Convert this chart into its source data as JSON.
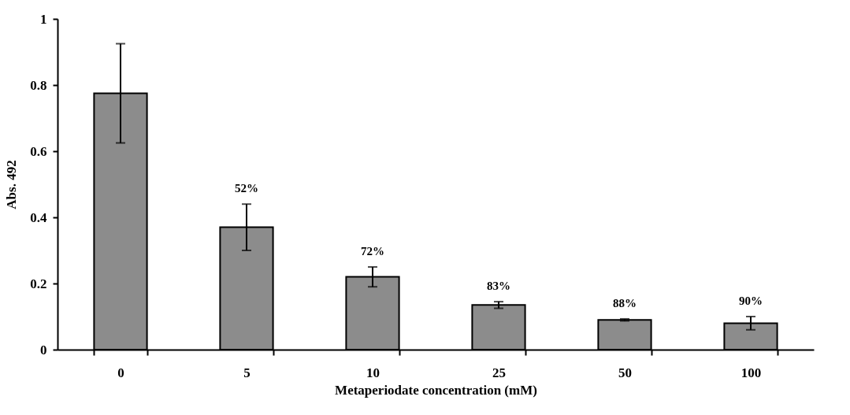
{
  "chart_data": {
    "type": "bar",
    "xlabel": "Metaperiodate concentration (mM)",
    "ylabel": "Abs. 492",
    "categories": [
      "0",
      "5",
      "10",
      "25",
      "50",
      "100"
    ],
    "values": [
      0.775,
      0.37,
      0.22,
      0.135,
      0.09,
      0.08
    ],
    "errors": [
      0.15,
      0.07,
      0.03,
      0.01,
      0.003,
      0.02
    ],
    "annotations": [
      {
        "text": "52%",
        "x": "5",
        "y": 0.44
      },
      {
        "text": "72%",
        "x": "10",
        "y": 0.25
      },
      {
        "text": "83%",
        "x": "25",
        "y": 0.145
      },
      {
        "text": "88%",
        "x": "50",
        "y": 0.093
      },
      {
        "text": "90%",
        "x": "100",
        "y": 0.1
      }
    ],
    "color": "#8c8c8c",
    "ylim": [
      0,
      1
    ],
    "yticks": [
      0,
      0.2,
      0.4,
      0.6,
      0.8,
      1
    ],
    "grid": false
  }
}
